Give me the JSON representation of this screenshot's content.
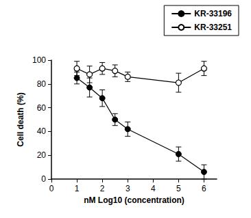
{
  "chart_data": {
    "type": "line",
    "x_label": "nM Log10 (concentration)",
    "y_label": "Cell death (%)",
    "xlim": [
      0,
      6.5
    ],
    "xticks": [
      0,
      1,
      2,
      3,
      4,
      5,
      6
    ],
    "ylim": [
      0,
      100
    ],
    "yticks": [
      0,
      20,
      40,
      60,
      80,
      100
    ],
    "grid": false,
    "legend": "upper right",
    "series": [
      {
        "name": "KR-33196",
        "color": "#000000",
        "marker": "circle",
        "x": [
          1,
          1.5,
          2,
          2.5,
          3,
          5,
          6
        ],
        "values": [
          85,
          77,
          68,
          50,
          42,
          21,
          6
        ],
        "errors": [
          5,
          8,
          7,
          5,
          6,
          6,
          6
        ]
      },
      {
        "name": "KR-33251",
        "color": "#000000",
        "marker": "open_circle",
        "x": [
          1,
          1.5,
          2,
          2.5,
          3,
          5,
          6
        ],
        "values": [
          93,
          88,
          93,
          91,
          86,
          81,
          93
        ],
        "errors": [
          6,
          7,
          5,
          5,
          4,
          8,
          6
        ]
      }
    ]
  }
}
